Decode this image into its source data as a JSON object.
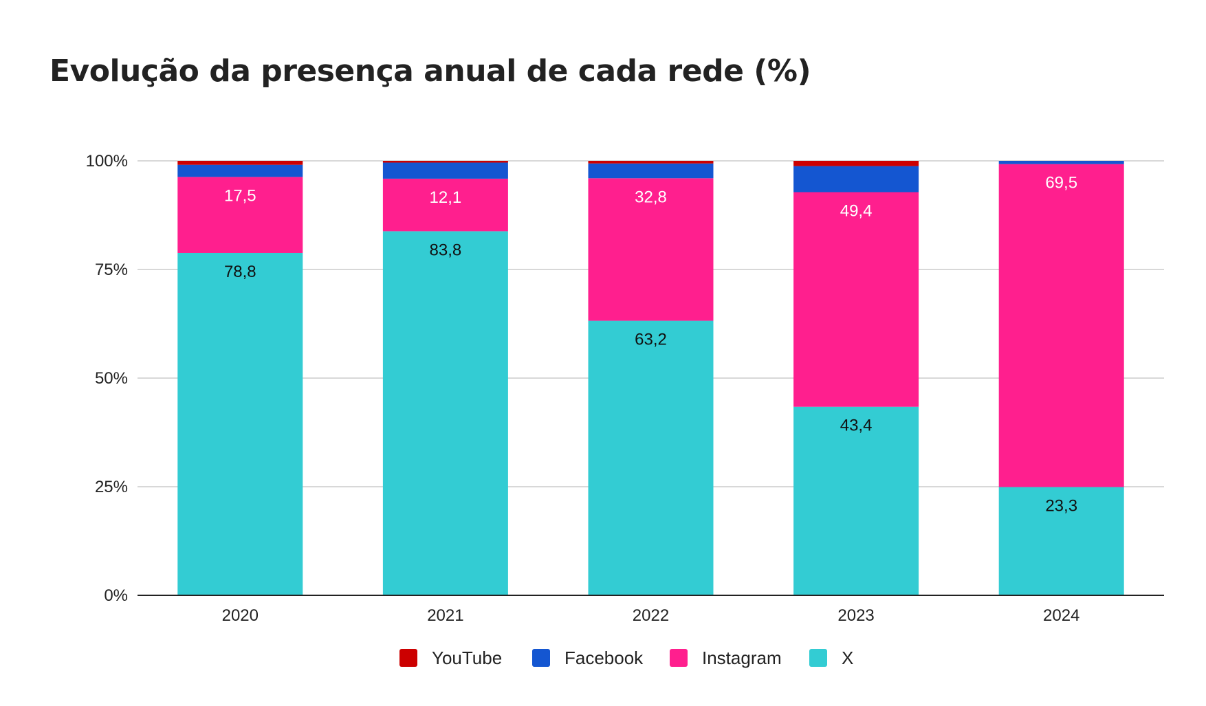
{
  "chart_data": {
    "type": "bar",
    "stacked": true,
    "normalized": true,
    "title": "Evolução da presença anual de cada rede (%)",
    "xlabel": "",
    "ylabel": "",
    "categories": [
      "2020",
      "2021",
      "2022",
      "2023",
      "2024"
    ],
    "y_ticks": [
      "0%",
      "25%",
      "50%",
      "75%",
      "100%"
    ],
    "ylim": [
      0,
      100
    ],
    "grid": true,
    "legend_position": "bottom",
    "series": [
      {
        "name": "X",
        "color": "#33CCD3",
        "label_color": "#111111",
        "values": [
          78.8,
          83.8,
          63.2,
          43.4,
          23.3
        ],
        "labels": [
          "78,8",
          "83,8",
          "63,2",
          "43,4",
          "23,3"
        ]
      },
      {
        "name": "Instagram",
        "color": "#FF1F8E",
        "label_color": "#FFFFFF",
        "values": [
          17.5,
          12.1,
          32.8,
          49.4,
          69.5
        ],
        "labels": [
          "17,5",
          "12,1",
          "32,8",
          "49,4",
          "69,5"
        ]
      },
      {
        "name": "Facebook",
        "color": "#1456D1",
        "label_color": "",
        "values": [
          2.8,
          3.7,
          3.4,
          6.0,
          0.7
        ],
        "labels": [
          "",
          "",
          "",
          "",
          ""
        ]
      },
      {
        "name": "YouTube",
        "color": "#CC0000",
        "label_color": "",
        "values": [
          0.9,
          0.4,
          0.6,
          1.2,
          0.0
        ],
        "labels": [
          "",
          "",
          "",
          "",
          ""
        ]
      }
    ],
    "legend_order": [
      "YouTube",
      "Facebook",
      "Instagram",
      "X"
    ]
  }
}
